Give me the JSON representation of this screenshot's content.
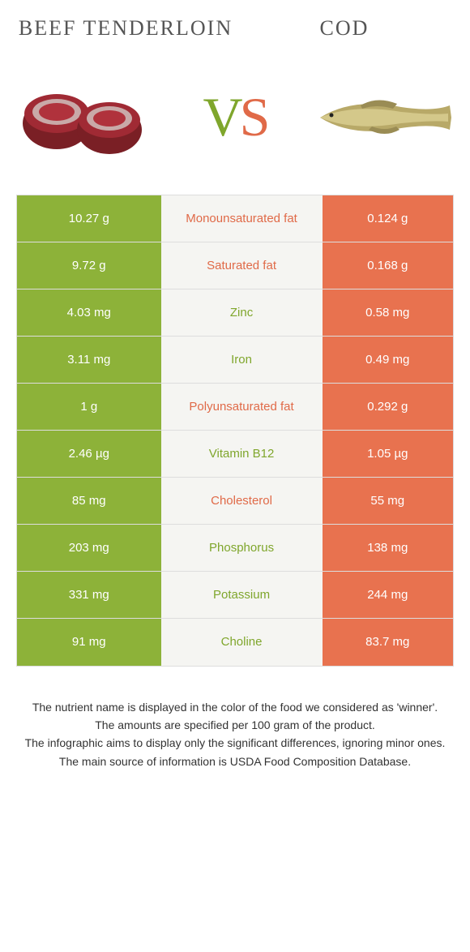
{
  "colors": {
    "left": "#8db239",
    "right": "#e8724f",
    "mid_bg": "#f5f5f2",
    "mid_winner_left": "#7fa62c",
    "mid_winner_right": "#e06a48"
  },
  "titles": {
    "left": "Beef tenderloin",
    "right": "Cod"
  },
  "vs": {
    "v": "V",
    "s": "S"
  },
  "rows": [
    {
      "left": "10.27 g",
      "label": "Monounsaturated fat",
      "right": "0.124 g",
      "winner": "right"
    },
    {
      "left": "9.72 g",
      "label": "Saturated fat",
      "right": "0.168 g",
      "winner": "right"
    },
    {
      "left": "4.03 mg",
      "label": "Zinc",
      "right": "0.58 mg",
      "winner": "left"
    },
    {
      "left": "3.11 mg",
      "label": "Iron",
      "right": "0.49 mg",
      "winner": "left"
    },
    {
      "left": "1 g",
      "label": "Polyunsaturated fat",
      "right": "0.292 g",
      "winner": "right"
    },
    {
      "left": "2.46 µg",
      "label": "Vitamin B12",
      "right": "1.05 µg",
      "winner": "left"
    },
    {
      "left": "85 mg",
      "label": "Cholesterol",
      "right": "55 mg",
      "winner": "right"
    },
    {
      "left": "203 mg",
      "label": "Phosphorus",
      "right": "138 mg",
      "winner": "left"
    },
    {
      "left": "331 mg",
      "label": "Potassium",
      "right": "244 mg",
      "winner": "left"
    },
    {
      "left": "91 mg",
      "label": "Choline",
      "right": "83.7 mg",
      "winner": "left"
    }
  ],
  "footer": [
    "The nutrient name is displayed in the color of the food we considered as 'winner'.",
    "The amounts are specified per 100 gram of the product.",
    "The infographic aims to display only the significant differences, ignoring minor ones.",
    "The main source of information is USDA Food Composition Database."
  ]
}
